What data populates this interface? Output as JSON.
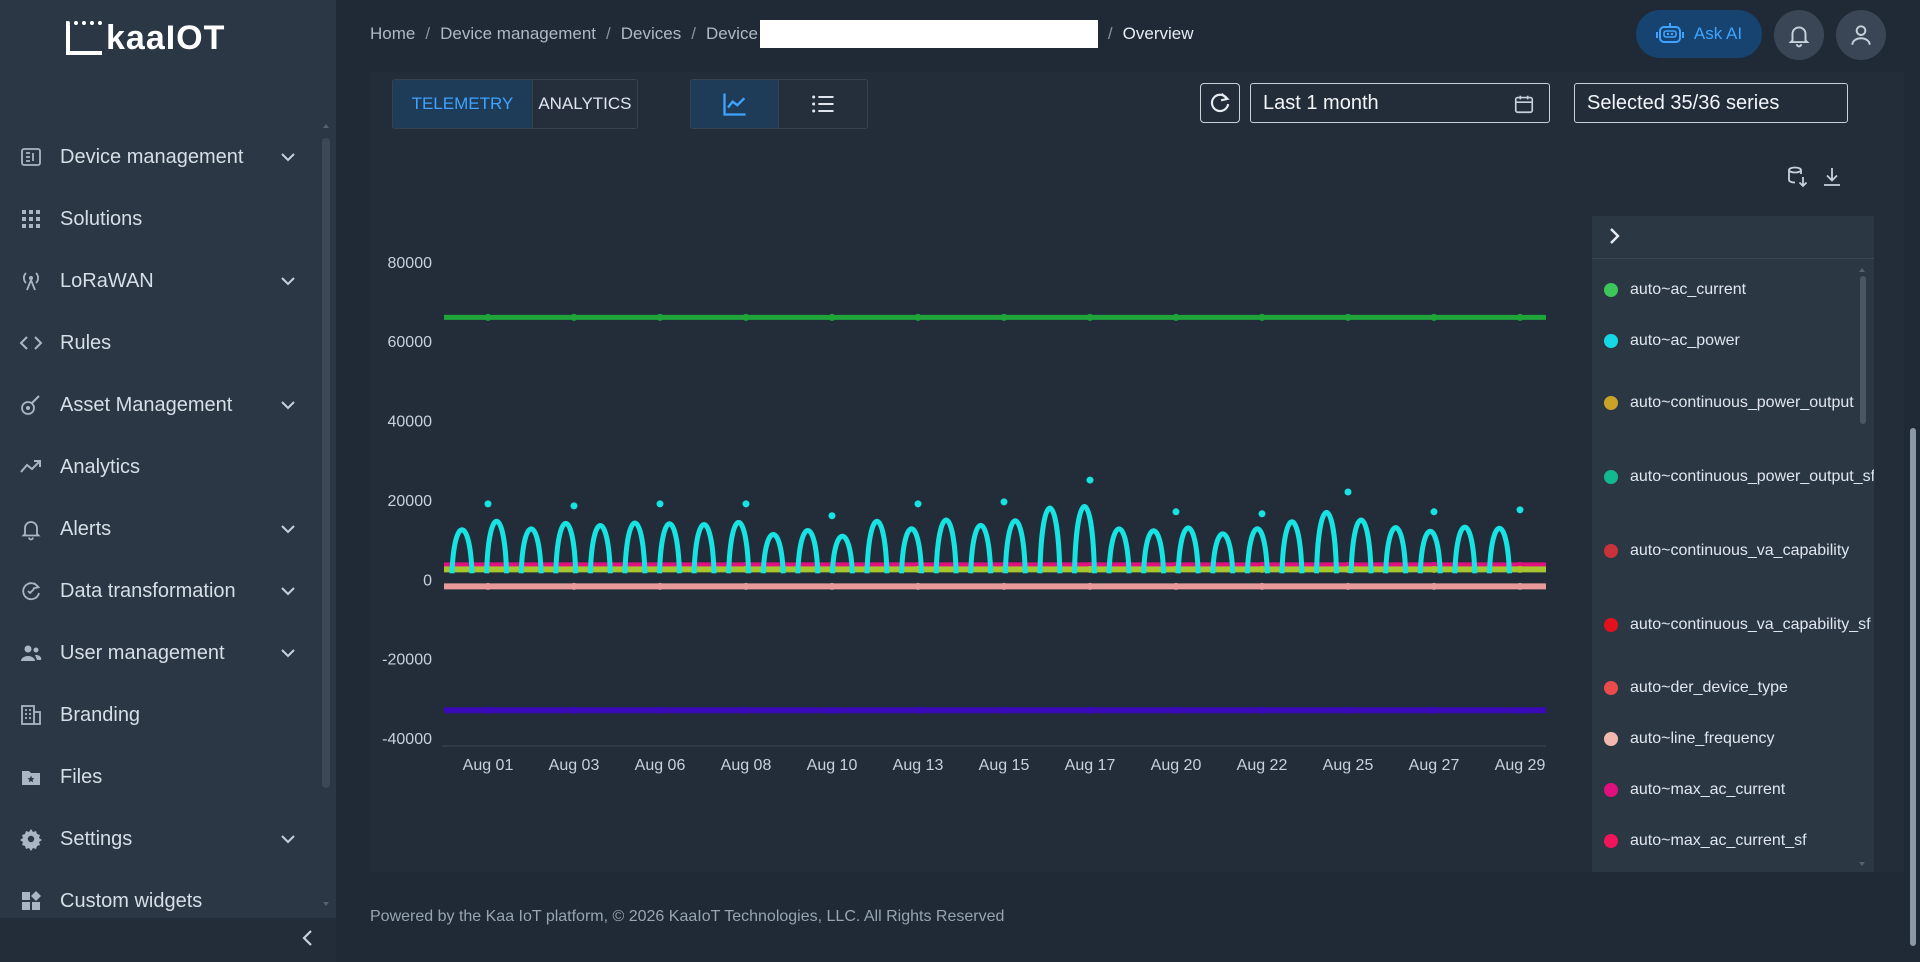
{
  "brand": {
    "name": "kaaIOT"
  },
  "sidebar": {
    "items": [
      {
        "label": "Device management",
        "icon": "device-management-icon",
        "expandable": true
      },
      {
        "label": "Solutions",
        "icon": "grid-icon",
        "expandable": false
      },
      {
        "label": "LoRaWAN",
        "icon": "antenna-icon",
        "expandable": true
      },
      {
        "label": "Rules",
        "icon": "code-icon",
        "expandable": false
      },
      {
        "label": "Asset Management",
        "icon": "asset-icon",
        "expandable": true
      },
      {
        "label": "Analytics",
        "icon": "analytics-icon",
        "expandable": false
      },
      {
        "label": "Alerts",
        "icon": "bell-icon",
        "expandable": true
      },
      {
        "label": "Data transformation",
        "icon": "transform-icon",
        "expandable": true
      },
      {
        "label": "User management",
        "icon": "users-icon",
        "expandable": true
      },
      {
        "label": "Branding",
        "icon": "branding-icon",
        "expandable": false
      },
      {
        "label": "Files",
        "icon": "files-icon",
        "expandable": false
      },
      {
        "label": "Settings",
        "icon": "gear-icon",
        "expandable": true
      },
      {
        "label": "Custom widgets",
        "icon": "widgets-icon",
        "expandable": false
      }
    ]
  },
  "breadcrumb": {
    "items": [
      "Home",
      "Device management",
      "Devices",
      "Device"
    ],
    "current": "Overview"
  },
  "header": {
    "ask_ai": "Ask AI"
  },
  "tabs": {
    "telemetry": "TELEMETRY",
    "analytics": "ANALYTICS"
  },
  "toolbar": {
    "date_range": "Last 1 month",
    "series_selector": "Selected 35/36 series"
  },
  "legend": {
    "items": [
      {
        "label": "auto~ac_current",
        "color": "#3ec65a"
      },
      {
        "label": "auto~ac_power",
        "color": "#17d6e6"
      },
      {
        "label": "auto~continuous_power_output",
        "color": "#c9a227"
      },
      {
        "label": "auto~continuous_power_output_sf",
        "color": "#13b890"
      },
      {
        "label": "auto~continuous_va_capability",
        "color": "#c8323a"
      },
      {
        "label": "auto~continuous_va_capability_sf",
        "color": "#e3111c"
      },
      {
        "label": "auto~der_device_type",
        "color": "#ea4b4b"
      },
      {
        "label": "auto~line_frequency",
        "color": "#f2b8ad"
      },
      {
        "label": "auto~max_ac_current",
        "color": "#e0107e"
      },
      {
        "label": "auto~max_ac_current_sf",
        "color": "#f0145a"
      }
    ]
  },
  "chart_data": {
    "type": "line",
    "title": "",
    "xlabel": "",
    "ylabel": "",
    "ylim": [
      -40000,
      80000
    ],
    "yticks": [
      80000,
      60000,
      40000,
      20000,
      0,
      -20000,
      -40000
    ],
    "categories": [
      "Aug 01",
      "Aug 03",
      "Aug 06",
      "Aug 08",
      "Aug 10",
      "Aug 13",
      "Aug 15",
      "Aug 17",
      "Aug 20",
      "Aug 22",
      "Aug 25",
      "Aug 27",
      "Aug 29"
    ],
    "series": [
      {
        "name": "auto~ac_current",
        "color": "#1fa63a",
        "values": [
          66000,
          66000,
          66000,
          66000,
          66000,
          66000,
          66000,
          66000,
          66000,
          66000,
          66000,
          66000,
          66000
        ]
      },
      {
        "name": "auto~ac_power",
        "color": "#17e3e3",
        "values": [
          19000,
          18500,
          19000,
          19000,
          16000,
          19000,
          19500,
          25000,
          17000,
          16500,
          22000,
          17000,
          17500
        ]
      },
      {
        "name": "auto~max_ac_current",
        "color": "#e0107e",
        "values": [
          3500,
          3500,
          3500,
          3500,
          3500,
          3500,
          3500,
          3500,
          3500,
          3500,
          3500,
          3500,
          3500
        ]
      },
      {
        "name": "auto~continuous_power_output",
        "color": "#a7c431",
        "values": [
          2500,
          2500,
          2500,
          2500,
          2500,
          2500,
          2500,
          2500,
          2500,
          2500,
          2500,
          2500,
          2500
        ]
      },
      {
        "name": "auto~line_frequency",
        "color": "#e89a9a",
        "values": [
          -1800,
          -1800,
          -1800,
          -1800,
          -1800,
          -1800,
          -1800,
          -1800,
          -1800,
          -1800,
          -1800,
          -1800,
          -1800
        ]
      },
      {
        "name": "",
        "color": "#3a0ab8",
        "values": [
          -33000,
          -33000,
          -33000,
          -33000,
          -33000,
          -33000,
          -33000,
          -33000,
          -33000,
          -33000,
          -33000,
          -33000,
          -33000
        ]
      }
    ]
  },
  "footer": {
    "text": "Powered by the Kaa IoT platform, © 2026 KaaIoT Technologies, LLC. All Rights Reserved"
  }
}
